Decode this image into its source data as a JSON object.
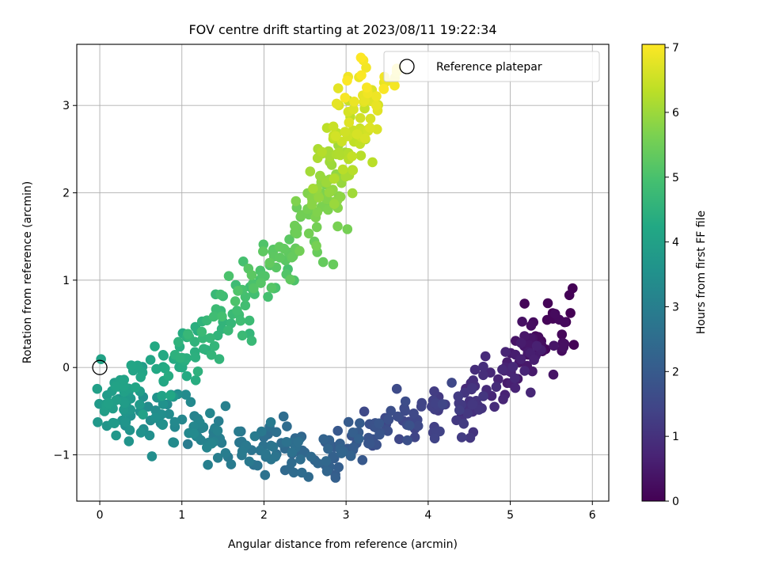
{
  "chart_data": {
    "type": "scatter",
    "title": "FOV centre drift starting at 2023/08/11 19:22:34",
    "xlabel": "Angular distance from reference (arcmin)",
    "ylabel": "Rotation from reference (arcmin)",
    "xlim": [
      -0.28,
      6.2
    ],
    "ylim": [
      -1.53,
      3.7
    ],
    "xticks": [
      0,
      1,
      2,
      3,
      4,
      5,
      6
    ],
    "yticks": [
      -1,
      0,
      1,
      2,
      3
    ],
    "grid": true,
    "legend": {
      "position": "top-right",
      "entries": [
        "Reference platepar"
      ]
    },
    "reference_point": {
      "x": 0,
      "y": 0
    },
    "colorbar": {
      "label": "Hours from first FF file",
      "colormap": "viridis",
      "range": [
        0,
        7.05
      ],
      "ticks": [
        0,
        1,
        2,
        3,
        4,
        5,
        6,
        7
      ]
    },
    "track_anchors": [
      {
        "h": 0.0,
        "x": 5.6,
        "y": 0.6
      },
      {
        "h": 0.4,
        "x": 5.3,
        "y": 0.2
      },
      {
        "h": 0.8,
        "x": 4.9,
        "y": -0.2
      },
      {
        "h": 1.2,
        "x": 4.35,
        "y": -0.5
      },
      {
        "h": 1.6,
        "x": 3.7,
        "y": -0.55
      },
      {
        "h": 1.9,
        "x": 3.2,
        "y": -0.8
      },
      {
        "h": 2.2,
        "x": 2.8,
        "y": -1.0
      },
      {
        "h": 2.5,
        "x": 2.3,
        "y": -0.95
      },
      {
        "h": 2.8,
        "x": 1.8,
        "y": -0.9
      },
      {
        "h": 3.1,
        "x": 1.3,
        "y": -0.75
      },
      {
        "h": 3.4,
        "x": 0.8,
        "y": -0.65
      },
      {
        "h": 3.7,
        "x": 0.35,
        "y": -0.5
      },
      {
        "h": 3.95,
        "x": 0.2,
        "y": -0.3
      },
      {
        "h": 4.2,
        "x": 0.65,
        "y": 0.0
      },
      {
        "h": 4.5,
        "x": 1.2,
        "y": 0.2
      },
      {
        "h": 4.8,
        "x": 1.7,
        "y": 0.65
      },
      {
        "h": 5.1,
        "x": 2.0,
        "y": 1.1
      },
      {
        "h": 5.4,
        "x": 2.4,
        "y": 1.45
      },
      {
        "h": 5.8,
        "x": 2.8,
        "y": 1.95
      },
      {
        "h": 6.2,
        "x": 2.95,
        "y": 2.4
      },
      {
        "h": 6.6,
        "x": 3.15,
        "y": 2.85
      },
      {
        "h": 7.05,
        "x": 3.35,
        "y": 3.4
      }
    ],
    "point_count": 640,
    "jitter": {
      "x": 0.17,
      "y": 0.15
    }
  }
}
